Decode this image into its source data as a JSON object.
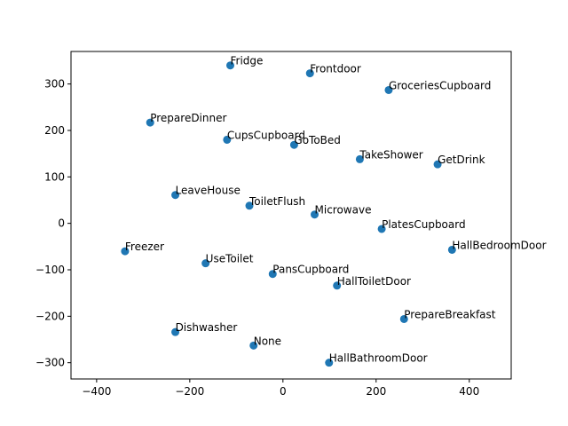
{
  "chart_data": {
    "type": "scatter",
    "title": "",
    "xlabel": "",
    "ylabel": "",
    "xlim": [
      -455,
      490
    ],
    "ylim": [
      -335,
      370
    ],
    "xticks": [
      -400,
      -200,
      0,
      200,
      400
    ],
    "yticks": [
      -300,
      -200,
      -100,
      0,
      100,
      200,
      300
    ],
    "grid": false,
    "point_color": "#1f77b4",
    "points": [
      {
        "label": "Fridge",
        "x": -113,
        "y": 340
      },
      {
        "label": "Frontdoor",
        "x": 58,
        "y": 323
      },
      {
        "label": "GroceriesCupboard",
        "x": 227,
        "y": 287
      },
      {
        "label": "PrepareDinner",
        "x": -285,
        "y": 217
      },
      {
        "label": "CupsCupboard",
        "x": -120,
        "y": 180
      },
      {
        "label": "GoToBed",
        "x": 24,
        "y": 169
      },
      {
        "label": "TakeShower",
        "x": 165,
        "y": 138
      },
      {
        "label": "GetDrink",
        "x": 332,
        "y": 127
      },
      {
        "label": "LeaveHouse",
        "x": -231,
        "y": 61
      },
      {
        "label": "ToiletFlush",
        "x": -72,
        "y": 38
      },
      {
        "label": "Microwave",
        "x": 68,
        "y": 19
      },
      {
        "label": "PlatesCupboard",
        "x": 212,
        "y": -12
      },
      {
        "label": "HallBedroomDoor",
        "x": 363,
        "y": -57
      },
      {
        "label": "Freezer",
        "x": -339,
        "y": -60
      },
      {
        "label": "UseToilet",
        "x": -166,
        "y": -86
      },
      {
        "label": "PansCupboard",
        "x": -22,
        "y": -109
      },
      {
        "label": "HallToiletDoor",
        "x": 116,
        "y": -134
      },
      {
        "label": "PrepareBreakfast",
        "x": 260,
        "y": -206
      },
      {
        "label": "Dishwasher",
        "x": -231,
        "y": -234
      },
      {
        "label": "None",
        "x": -63,
        "y": -263
      },
      {
        "label": "HallBathroomDoor",
        "x": 99,
        "y": -300
      }
    ]
  }
}
